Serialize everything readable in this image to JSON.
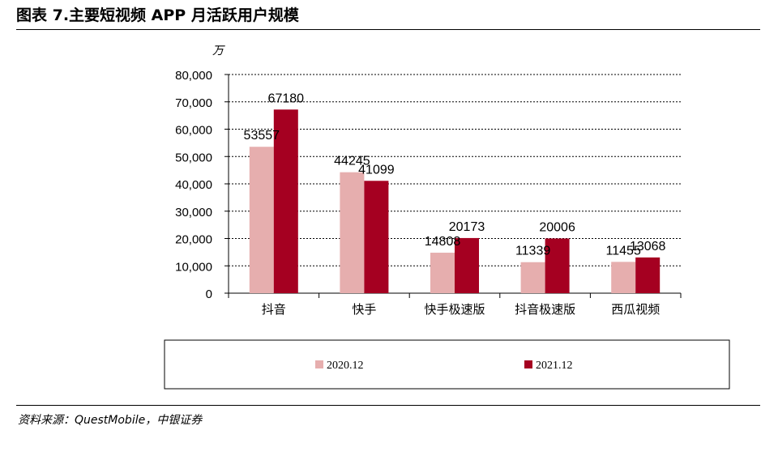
{
  "figure": {
    "title": "图表 7.主要短视频 APP 月活跃用户规模",
    "source": "资料来源：QuestMobile，中银证券"
  },
  "chart_data": {
    "type": "bar",
    "unit": "万",
    "categories": [
      "抖音",
      "快手",
      "快手极速版",
      "抖音极速版",
      "西瓜视频"
    ],
    "series": [
      {
        "name": "2020.12",
        "color": "#e6aeae",
        "values": [
          53557,
          44245,
          14808,
          11339,
          11455
        ]
      },
      {
        "name": "2021.12",
        "color": "#a50021",
        "values": [
          67180,
          41099,
          20173,
          20006,
          13068
        ]
      }
    ],
    "ylim": [
      0,
      80000
    ],
    "yticks": [
      "0",
      "10,000",
      "20,000",
      "30,000",
      "40,000",
      "50,000",
      "60,000",
      "70,000",
      "80,000"
    ],
    "grid": true,
    "legend_position": "bottom"
  }
}
